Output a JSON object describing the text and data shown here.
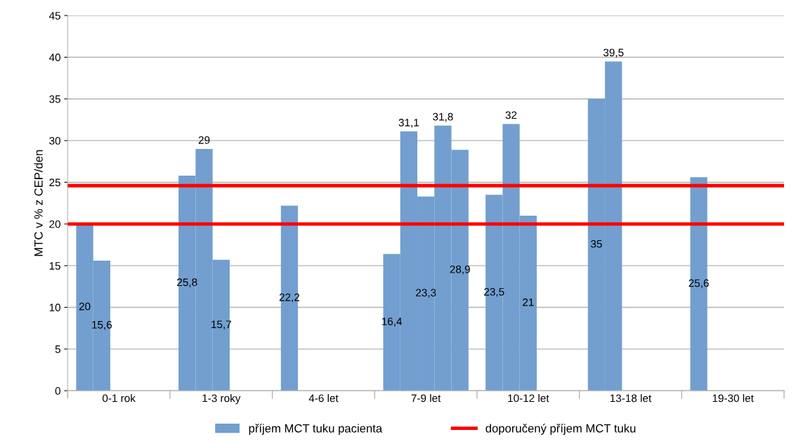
{
  "chart_data": {
    "type": "bar",
    "ylabel": "MTC v % z CEP/den",
    "categories": [
      "0-1 rok",
      "1-3 roky",
      "4-6 let",
      "7-9 let",
      "10-12 let",
      "13-18 let",
      "19-30 let"
    ],
    "series": [
      {
        "name": "příjem MCT tuku pacienta",
        "color": "#729fcf",
        "values": [
          20,
          25.8,
          22.2,
          16.4,
          23.5,
          35,
          25.6
        ],
        "value_labels": [
          "20",
          "25,8",
          "22,2",
          "16,4",
          "23,5",
          "35",
          "25,6"
        ]
      },
      {
        "color": "#729fcf",
        "values": [
          15.6,
          29,
          null,
          31.1,
          32,
          39.5,
          null
        ],
        "value_labels": [
          "15,6",
          "29",
          null,
          "31,1",
          "32",
          "39,5",
          null
        ]
      },
      {
        "color": "#729fcf",
        "values": [
          null,
          15.7,
          null,
          23.3,
          21,
          null,
          null
        ],
        "value_labels": [
          null,
          "15,7",
          null,
          "23,3",
          "21",
          null,
          null
        ]
      },
      {
        "color": "#729fcf",
        "values": [
          null,
          null,
          null,
          31.8,
          null,
          null,
          null
        ],
        "value_labels": [
          null,
          null,
          null,
          "31,8",
          null,
          null,
          null
        ]
      },
      {
        "color": "#729fcf",
        "values": [
          null,
          null,
          null,
          28.9,
          null,
          null,
          null
        ],
        "value_labels": [
          null,
          null,
          null,
          "28,9",
          null,
          null,
          null
        ]
      }
    ],
    "ref_lines": [
      {
        "axis": "y",
        "value": 24.6,
        "label": "doporučený příjem MCT tuku",
        "color": "#ff0000"
      },
      {
        "axis": "y",
        "value": 20,
        "color": "#ff0000"
      }
    ],
    "ylim": [
      0,
      45
    ],
    "yticks": [
      0,
      5,
      10,
      15,
      20,
      25,
      30,
      35,
      40,
      45
    ],
    "grid": "y",
    "legend": "bottom"
  }
}
